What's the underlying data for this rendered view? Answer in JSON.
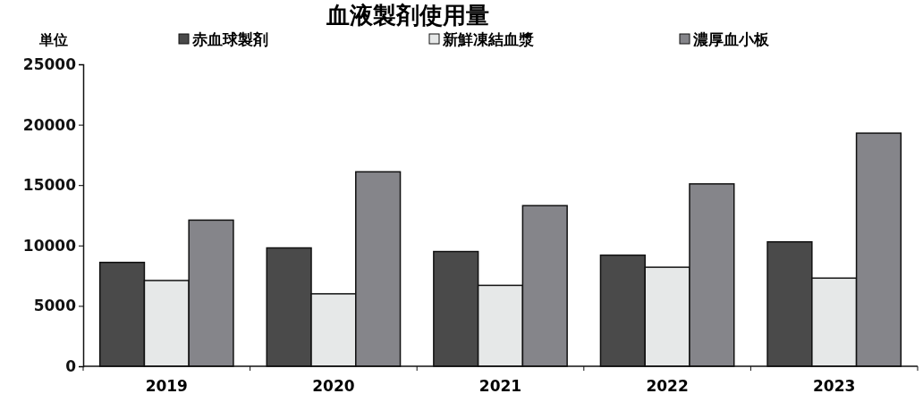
{
  "chart_data": {
    "type": "bar",
    "title": "血液製剤使用量",
    "ylabel": "単位",
    "categories": [
      "2019",
      "2020",
      "2021",
      "2022",
      "2023"
    ],
    "series": [
      {
        "name": "赤血球製剤",
        "color": "#4a4a4a",
        "values": [
          8600,
          9800,
          9500,
          9200,
          10300
        ]
      },
      {
        "name": "新鮮凍結血漿",
        "color": "#e6e8e8",
        "values": [
          7100,
          6000,
          6700,
          8200,
          7300
        ]
      },
      {
        "name": "濃厚血小板",
        "color": "#85858a",
        "values": [
          12100,
          16100,
          13300,
          15100,
          19300
        ]
      }
    ],
    "ylim": [
      0,
      25000
    ],
    "yticks": [
      0,
      5000,
      10000,
      15000,
      20000,
      25000
    ],
    "grid": false,
    "legend": "top"
  }
}
